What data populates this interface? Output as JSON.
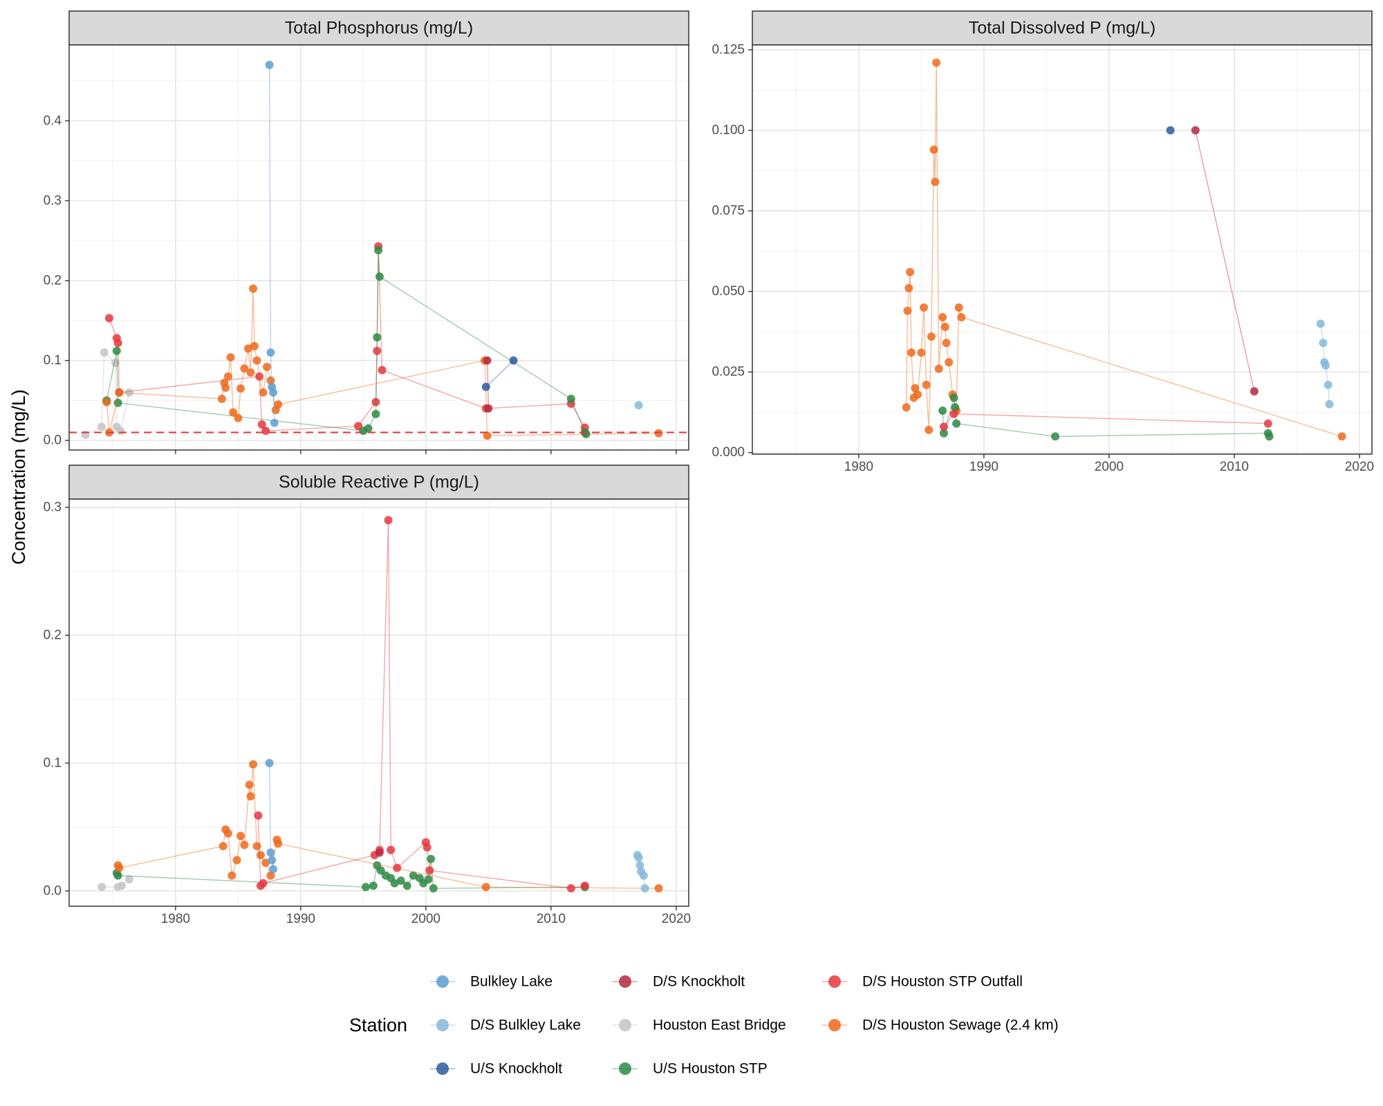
{
  "chart_data": {
    "type": "scatter",
    "y_axis_label": "Concentration (mg/L)",
    "legend": {
      "title": "Station",
      "position": "bottom",
      "entries": [
        {
          "name": "Bulkley Lake",
          "color": "#5a9fd0"
        },
        {
          "name": "D/S Knockholt",
          "color": "#b5293f"
        },
        {
          "name": "D/S Houston STP Outfall",
          "color": "#e6373e"
        },
        {
          "name": "D/S Bulkley Lake",
          "color": "#86b8da"
        },
        {
          "name": "Houston East Bridge",
          "color": "#c4c4c4"
        },
        {
          "name": "D/S Houston Sewage (2.4 km)",
          "color": "#ef6a1c"
        },
        {
          "name": "U/S Knockholt",
          "color": "#2d5b9e"
        },
        {
          "name": "U/S Houston STP",
          "color": "#2d8a45"
        }
      ]
    },
    "grid": true,
    "panels": [
      {
        "title": "Total Phosphorus (mg/L)",
        "xlim": [
          1971.5,
          2021
        ],
        "ylim": [
          -0.012,
          0.495
        ],
        "x_ticks": [
          1980,
          1990,
          2000,
          2010,
          2020
        ],
        "x_tick_labels": [
          "",
          "",
          "",
          "",
          ""
        ],
        "y_ticks": [
          0,
          0.1,
          0.2,
          0.3,
          0.4
        ],
        "y_tick_labels": [
          "0.0",
          "0.1",
          "0.2",
          "0.3",
          "0.4"
        ],
        "reference_line": {
          "y": 0.01,
          "color": "#e03a3a",
          "style": "dashed"
        },
        "series": [
          {
            "name": "Houston East Bridge",
            "color": "#c4c4c4",
            "x": [
              1972.8,
              1974.1,
              1974.3,
              1975.2,
              1975.3,
              1975.6,
              1976.3
            ],
            "y": [
              0.007,
              0.017,
              0.11,
              0.097,
              0.017,
              0.012,
              0.06
            ]
          },
          {
            "name": "D/S Houston STP Outfall",
            "color": "#e6373e",
            "x": [
              1974.7,
              1975.3,
              1975.4,
              1975.5,
              1986.7,
              1986.9,
              1987.2,
              1994.6,
              1996.0,
              1996.1,
              1996.2,
              1996.5,
              2004.8,
              2011.6,
              2012.7
            ],
            "y": [
              0.153,
              0.128,
              0.122,
              0.06,
              0.08,
              0.02,
              0.012,
              0.018,
              0.048,
              0.112,
              0.243,
              0.088,
              0.04,
              0.046,
              0.016
            ]
          },
          {
            "name": "U/S Houston STP",
            "color": "#2d8a45",
            "x": [
              1974.5,
              1975.3,
              1975.4,
              1995.0,
              1995.4,
              1996.0,
              1996.1,
              1996.2,
              1996.3,
              2011.6,
              2012.7,
              2012.8
            ],
            "y": [
              0.05,
              0.112,
              0.047,
              0.012,
              0.015,
              0.033,
              0.129,
              0.238,
              0.205,
              0.052,
              0.01,
              0.008
            ]
          },
          {
            "name": "D/S Houston Sewage (2.4 km)",
            "color": "#ef6a1c",
            "x": [
              1974.5,
              1974.7,
              1975.5,
              1983.7,
              1983.9,
              1984.0,
              1984.2,
              1984.4,
              1984.6,
              1985.0,
              1985.2,
              1985.5,
              1985.8,
              1986.0,
              1986.2,
              1986.3,
              1986.5,
              1987.0,
              1987.3,
              1987.6,
              1988.0,
              1988.2,
              2004.7,
              2004.9,
              2018.6
            ],
            "y": [
              0.048,
              0.01,
              0.06,
              0.052,
              0.072,
              0.066,
              0.08,
              0.104,
              0.035,
              0.028,
              0.065,
              0.09,
              0.115,
              0.085,
              0.19,
              0.118,
              0.1,
              0.06,
              0.092,
              0.075,
              0.038,
              0.045,
              0.1,
              0.006,
              0.009
            ]
          },
          {
            "name": "Bulkley Lake",
            "color": "#5a9fd0",
            "x": [
              1987.5,
              1987.6,
              1987.7,
              1987.8,
              1987.9
            ],
            "y": [
              0.47,
              0.11,
              0.067,
              0.06,
              0.022
            ]
          },
          {
            "name": "D/S Knockholt",
            "color": "#b5293f",
            "x": [
              2004.9,
              2005.0
            ],
            "y": [
              0.1,
              0.04
            ]
          },
          {
            "name": "U/S Knockholt",
            "color": "#2d5b9e",
            "x": [
              2004.8,
              2007.0
            ],
            "y": [
              0.067,
              0.1
            ]
          },
          {
            "name": "D/S Bulkley Lake",
            "color": "#86b8da",
            "x": [
              2017.0
            ],
            "y": [
              0.044
            ]
          }
        ]
      },
      {
        "title": "Total Dissolved P (mg/L)",
        "xlim": [
          1971.5,
          2021
        ],
        "ylim": [
          -0.0005,
          0.1265
        ],
        "x_ticks": [
          1980,
          1990,
          2000,
          2010,
          2020
        ],
        "x_tick_labels": [
          "1980",
          "1990",
          "2000",
          "2010",
          "2020"
        ],
        "y_ticks": [
          0,
          0.025,
          0.05,
          0.075,
          0.1,
          0.125
        ],
        "y_tick_labels": [
          "0.000",
          "0.025",
          "0.050",
          "0.075",
          "0.100",
          "0.125"
        ],
        "series": [
          {
            "name": "D/S Houston Sewage (2.4 km)",
            "color": "#ef6a1c",
            "x": [
              1983.8,
              1983.9,
              1984.0,
              1984.1,
              1984.2,
              1984.4,
              1984.5,
              1984.7,
              1985.0,
              1985.2,
              1985.4,
              1985.6,
              1985.8,
              1986.0,
              1986.1,
              1986.2,
              1986.4,
              1986.7,
              1986.9,
              1987.0,
              1987.2,
              1987.5,
              1987.8,
              1988.0,
              1988.2,
              2018.6
            ],
            "y": [
              0.014,
              0.044,
              0.051,
              0.056,
              0.031,
              0.017,
              0.02,
              0.018,
              0.031,
              0.045,
              0.021,
              0.007,
              0.036,
              0.094,
              0.084,
              0.121,
              0.026,
              0.042,
              0.039,
              0.034,
              0.028,
              0.018,
              0.013,
              0.045,
              0.042,
              0.005
            ]
          },
          {
            "name": "U/S Houston STP",
            "color": "#2d8a45",
            "x": [
              1986.7,
              1986.8,
              1987.6,
              1987.7,
              1987.8,
              1995.7,
              2012.7,
              2012.8
            ],
            "y": [
              0.013,
              0.006,
              0.017,
              0.014,
              0.009,
              0.005,
              0.006,
              0.005
            ]
          },
          {
            "name": "D/S Houston STP Outfall",
            "color": "#e6373e",
            "x": [
              1986.8,
              1987.6,
              2012.7
            ],
            "y": [
              0.008,
              0.012,
              0.009
            ]
          },
          {
            "name": "D/S Knockholt",
            "color": "#b5293f",
            "x": [
              2006.9,
              2011.6
            ],
            "y": [
              0.1,
              0.019
            ]
          },
          {
            "name": "U/S Knockholt",
            "color": "#2d5b9e",
            "x": [
              2004.9
            ],
            "y": [
              0.1
            ]
          },
          {
            "name": "D/S Bulkley Lake",
            "color": "#86b8da",
            "x": [
              2016.9,
              2017.1,
              2017.2,
              2017.3,
              2017.5,
              2017.6
            ],
            "y": [
              0.04,
              0.034,
              0.028,
              0.027,
              0.021,
              0.015
            ]
          }
        ]
      },
      {
        "title": "Soluble Reactive P (mg/L)",
        "xlim": [
          1971.5,
          2021
        ],
        "ylim": [
          -0.012,
          0.3065
        ],
        "x_ticks": [
          1980,
          1990,
          2000,
          2010,
          2020
        ],
        "x_tick_labels": [
          "1980",
          "1990",
          "2000",
          "2010",
          "2020"
        ],
        "y_ticks": [
          0,
          0.1,
          0.2,
          0.3
        ],
        "y_tick_labels": [
          "0.0",
          "0.1",
          "0.2",
          "0.3"
        ],
        "series": [
          {
            "name": "Houston East Bridge",
            "color": "#c4c4c4",
            "x": [
              1974.1,
              1975.4,
              1975.7,
              1976.3
            ],
            "y": [
              0.003,
              0.003,
              0.004,
              0.009
            ]
          },
          {
            "name": "U/S Houston STP",
            "color": "#2d8a45",
            "x": [
              1975.3,
              1975.4,
              1995.2,
              1995.8,
              1996.1,
              1996.4,
              1996.8,
              1997.2,
              1997.5,
              1998.0,
              1998.5,
              1999.0,
              1999.5,
              1999.8,
              2000.2,
              2000.4,
              2000.6,
              2012.7
            ],
            "y": [
              0.014,
              0.012,
              0.003,
              0.004,
              0.02,
              0.016,
              0.012,
              0.01,
              0.006,
              0.008,
              0.004,
              0.012,
              0.01,
              0.006,
              0.009,
              0.025,
              0.002,
              0.003
            ]
          },
          {
            "name": "D/S Houston Sewage (2.4 km)",
            "color": "#ef6a1c",
            "x": [
              1975.4,
              1975.5,
              1983.8,
              1984.0,
              1984.2,
              1984.5,
              1984.9,
              1985.2,
              1985.5,
              1985.9,
              1986.0,
              1986.2,
              1986.5,
              1986.8,
              1987.2,
              1987.6,
              1988.1,
              1988.2,
              2004.8,
              2018.6
            ],
            "y": [
              0.02,
              0.018,
              0.035,
              0.048,
              0.045,
              0.012,
              0.024,
              0.043,
              0.036,
              0.083,
              0.074,
              0.099,
              0.035,
              0.028,
              0.022,
              0.012,
              0.04,
              0.037,
              0.003,
              0.002
            ]
          },
          {
            "name": "D/S Houston STP Outfall",
            "color": "#e6373e",
            "x": [
              1986.6,
              1986.8,
              1987.0,
              1995.9,
              1996.3,
              1997.0,
              1997.2,
              1997.7,
              2000.0,
              2000.1,
              2000.3,
              2011.6,
              2012.7
            ],
            "y": [
              0.059,
              0.004,
              0.006,
              0.028,
              0.032,
              0.29,
              0.032,
              0.018,
              0.038,
              0.034,
              0.016,
              0.002,
              0.004
            ]
          },
          {
            "name": "Bulkley Lake",
            "color": "#5a9fd0",
            "x": [
              1987.5,
              1987.6,
              1987.7,
              1987.8
            ],
            "y": [
              0.1,
              0.03,
              0.024,
              0.017
            ]
          },
          {
            "name": "D/S Knockholt",
            "color": "#b5293f",
            "x": [
              1996.3
            ],
            "y": [
              0.03
            ]
          },
          {
            "name": "D/S Bulkley Lake",
            "color": "#86b8da",
            "x": [
              2016.9,
              2017.0,
              2017.1,
              2017.2,
              2017.4,
              2017.5
            ],
            "y": [
              0.028,
              0.026,
              0.02,
              0.015,
              0.012,
              0.002
            ]
          }
        ]
      }
    ]
  }
}
